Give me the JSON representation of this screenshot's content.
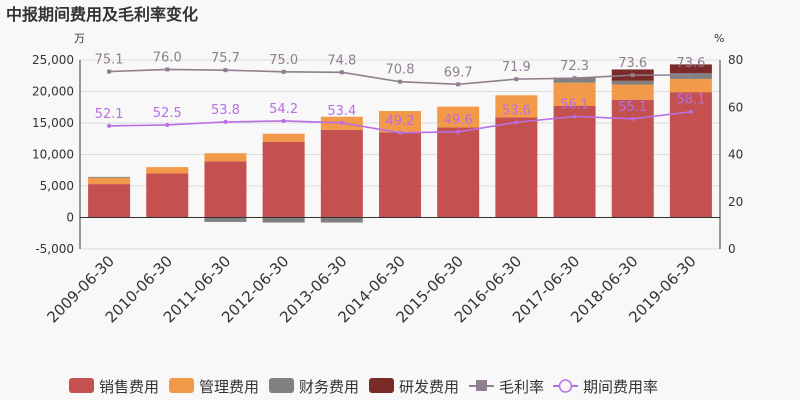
{
  "chart_data": {
    "type": "bar",
    "title": "中报期间费用及毛利率变化",
    "y_left_unit": "万",
    "y_right_unit": "%",
    "y_left_ticks": [
      "25,000",
      "20,000",
      "15,000",
      "10,000",
      "5,000",
      "0",
      "-5,000"
    ],
    "y_right_ticks": [
      "80",
      "60",
      "40",
      "20",
      "0"
    ],
    "ylim_left": [
      -5000,
      25000
    ],
    "ylim_right": [
      0,
      80
    ],
    "categories": [
      "2009-06-30",
      "2010-06-30",
      "2011-06-30",
      "2012-06-30",
      "2013-06-30",
      "2014-06-30",
      "2015-06-30",
      "2016-06-30",
      "2017-06-30",
      "2018-06-30",
      "2019-06-30"
    ],
    "bar_series": [
      {
        "name": "销售费用",
        "color": "#c4504f",
        "values": [
          5300,
          7000,
          8900,
          12000,
          13900,
          13500,
          14300,
          15900,
          17700,
          18700,
          19900
        ]
      },
      {
        "name": "管理费用",
        "color": "#f29a4a",
        "values": [
          1000,
          1000,
          1300,
          1300,
          2100,
          3400,
          3300,
          3500,
          3700,
          2400,
          2100
        ]
      },
      {
        "name": "财务费用",
        "color": "#808080",
        "values": [
          150,
          0,
          -700,
          -800,
          -800,
          0,
          0,
          0,
          800,
          600,
          900
        ]
      },
      {
        "name": "研发费用",
        "color": "#7b2a2a",
        "values": [
          0,
          0,
          0,
          0,
          0,
          0,
          0,
          0,
          0,
          1800,
          1400
        ]
      }
    ],
    "line_series": [
      {
        "name": "毛利率",
        "color": "#8f7f8f",
        "marker": "square",
        "values": [
          75.1,
          76.0,
          75.7,
          75.0,
          74.8,
          70.8,
          69.7,
          71.9,
          72.3,
          73.6,
          73.6
        ],
        "labels": [
          "75.1",
          "76.0",
          "75.7",
          "75.0",
          "74.8",
          "70.8",
          "69.7",
          "71.9",
          "72.3",
          "73.6",
          "73.6"
        ]
      },
      {
        "name": "期间费用率",
        "color": "#b96fe3",
        "marker": "circle",
        "values": [
          52.1,
          52.5,
          53.8,
          54.2,
          53.4,
          49.2,
          49.6,
          53.6,
          56.1,
          55.1,
          58.1
        ],
        "labels": [
          "52.1",
          "52.5",
          "53.8",
          "54.2",
          "53.4",
          "49.2",
          "49.6",
          "53.6",
          "56.1",
          "55.1",
          "58.1"
        ]
      }
    ],
    "grid": true,
    "legend_position": "bottom"
  }
}
